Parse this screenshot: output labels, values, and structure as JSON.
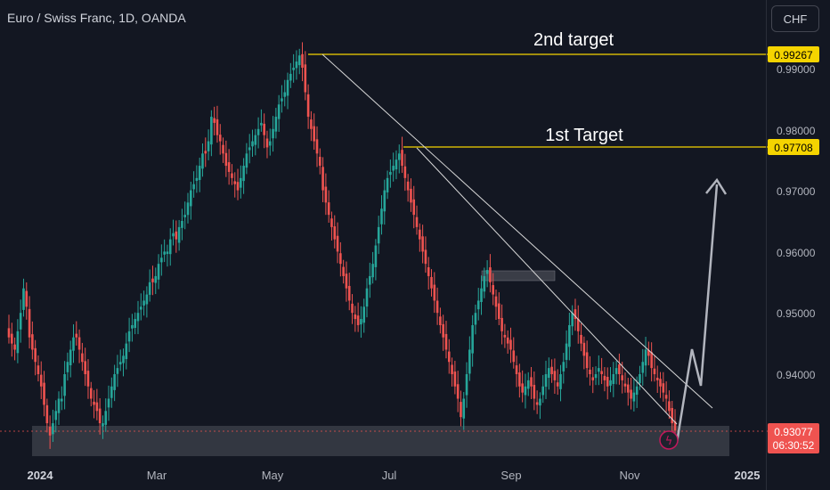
{
  "header": {
    "title": "Euro / Swiss Franc, 1D, OANDA"
  },
  "currency_button": {
    "label": "CHF"
  },
  "colors": {
    "up": "#26a69a",
    "down": "#ef5350",
    "target_line": "#f5d400",
    "trend_line": "#d8d8d8",
    "zone": "#3a3d47",
    "arrow": "#b2b5be",
    "bg": "#131722",
    "text": "#d1d4dc"
  },
  "chart_data": {
    "type": "candlestick",
    "symbol": "Euro / Swiss Franc, 1D, OANDA",
    "x_ticks": [
      "2024",
      "Mar",
      "May",
      "Jul",
      "Sep",
      "Nov",
      "2025"
    ],
    "y_ticks": [
      "0.99000",
      "0.98000",
      "0.97000",
      "0.96000",
      "0.95000",
      "0.94000"
    ],
    "ylim": [
      0.9285,
      0.9998
    ],
    "price_labels": {
      "second_target": "0.99267",
      "first_target": "0.97708",
      "current_price": "0.93077",
      "countdown": "06:30:52"
    },
    "annotations": {
      "second_target": "2nd target",
      "first_target": "1st Target"
    },
    "horizontal_levels": [
      0.99267,
      0.97708,
      0.93077
    ],
    "support_zone": [
      0.9285,
      0.9313
    ],
    "resistance_box": [
      0.9556,
      0.9572
    ],
    "closes": [
      0.946,
      0.945,
      0.944,
      0.947,
      0.95,
      0.954,
      0.951,
      0.946,
      0.944,
      0.942,
      0.94,
      0.938,
      0.935,
      0.932,
      0.93,
      0.932,
      0.934,
      0.936,
      0.936,
      0.94,
      0.942,
      0.944,
      0.946,
      0.946,
      0.944,
      0.942,
      0.94,
      0.938,
      0.936,
      0.935,
      0.934,
      0.932,
      0.932,
      0.934,
      0.936,
      0.938,
      0.94,
      0.941,
      0.942,
      0.943,
      0.945,
      0.947,
      0.948,
      0.949,
      0.95,
      0.951,
      0.952,
      0.953,
      0.955,
      0.955,
      0.956,
      0.958,
      0.959,
      0.96,
      0.96,
      0.962,
      0.963,
      0.962,
      0.964,
      0.965,
      0.966,
      0.968,
      0.97,
      0.971,
      0.972,
      0.974,
      0.976,
      0.976,
      0.978,
      0.982,
      0.981,
      0.979,
      0.978,
      0.976,
      0.974,
      0.973,
      0.972,
      0.971,
      0.97,
      0.972,
      0.974,
      0.976,
      0.977,
      0.978,
      0.979,
      0.98,
      0.981,
      0.979,
      0.977,
      0.978,
      0.98,
      0.982,
      0.984,
      0.985,
      0.986,
      0.988,
      0.989,
      0.99,
      0.991,
      0.992,
      0.99,
      0.986,
      0.982,
      0.98,
      0.978,
      0.976,
      0.974,
      0.97,
      0.968,
      0.966,
      0.964,
      0.962,
      0.96,
      0.958,
      0.956,
      0.954,
      0.952,
      0.95,
      0.949,
      0.948,
      0.949,
      0.951,
      0.954,
      0.956,
      0.958,
      0.961,
      0.964,
      0.967,
      0.97,
      0.972,
      0.973,
      0.974,
      0.975,
      0.976,
      0.974,
      0.972,
      0.97,
      0.968,
      0.966,
      0.964,
      0.962,
      0.96,
      0.958,
      0.956,
      0.954,
      0.952,
      0.95,
      0.948,
      0.946,
      0.944,
      0.942,
      0.94,
      0.938,
      0.936,
      0.933,
      0.936,
      0.94,
      0.944,
      0.948,
      0.95,
      0.952,
      0.954,
      0.956,
      0.957,
      0.955,
      0.953,
      0.951,
      0.949,
      0.947,
      0.946,
      0.945,
      0.944,
      0.942,
      0.94,
      0.938,
      0.937,
      0.938,
      0.939,
      0.938,
      0.936,
      0.935,
      0.936,
      0.938,
      0.94,
      0.941,
      0.94,
      0.939,
      0.938,
      0.94,
      0.942,
      0.945,
      0.948,
      0.95,
      0.949,
      0.947,
      0.945,
      0.943,
      0.941,
      0.94,
      0.939,
      0.94,
      0.941,
      0.94,
      0.939,
      0.938,
      0.939,
      0.94,
      0.941,
      0.94,
      0.939,
      0.938,
      0.937,
      0.936,
      0.937,
      0.938,
      0.94,
      0.942,
      0.944,
      0.943,
      0.941,
      0.94,
      0.939,
      0.938,
      0.937,
      0.936,
      0.934,
      0.932,
      0.9308
    ]
  }
}
